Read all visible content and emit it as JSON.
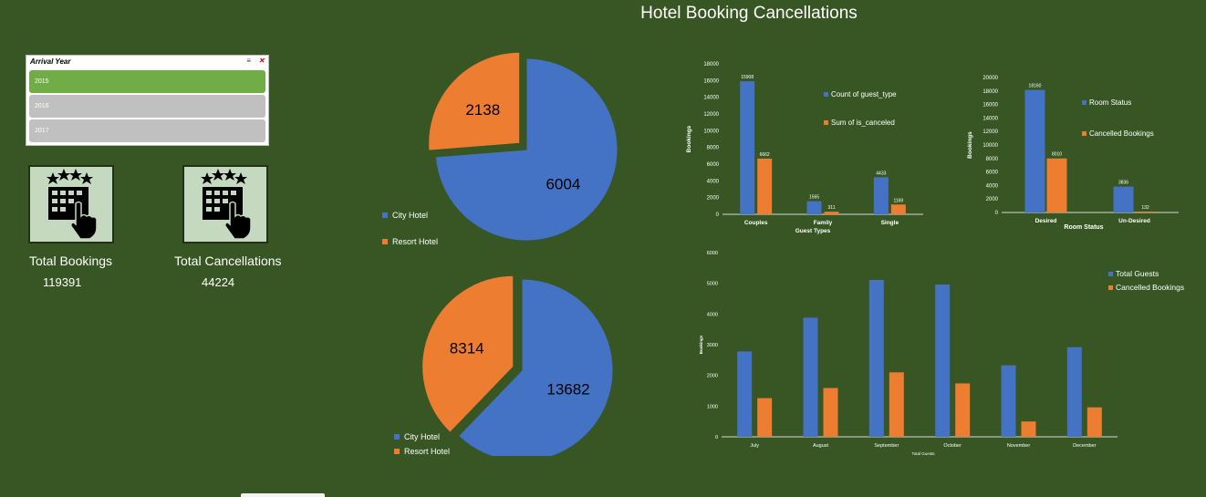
{
  "page": {
    "title": "Hotel Booking Cancellations"
  },
  "slicer": {
    "title": "Arrival Year",
    "items": [
      {
        "label": "2015",
        "selected": true
      },
      {
        "label": "2016",
        "selected": false
      },
      {
        "label": "2017",
        "selected": false
      }
    ]
  },
  "kpis": [
    {
      "label": "Total Bookings",
      "value": "119391",
      "icon": "hotel-tap-icon"
    },
    {
      "label": "Total Cancellations",
      "value": "44224",
      "icon": "hotel-tap-icon"
    }
  ],
  "colors": {
    "background": "#375623",
    "blue": "#4472c4",
    "orange": "#ed7d31",
    "slicer_selected": "#70ad47",
    "slicer_item": "#c0c0c0"
  },
  "chart_data": [
    {
      "type": "pie",
      "labels": [
        "City Hotel",
        "Resort Hotel"
      ],
      "values": [
        6004,
        2138
      ],
      "legend_position": "bottom-left",
      "exploded": "Resort Hotel"
    },
    {
      "type": "pie",
      "labels": [
        "City Hotel",
        "Resort Hotel"
      ],
      "values": [
        13682,
        8314
      ],
      "legend_position": "bottom-left",
      "exploded": "Resort Hotel"
    },
    {
      "type": "bar",
      "categories": [
        "Couples",
        "Family",
        "Single"
      ],
      "series": [
        {
          "name": "Count of guest_type",
          "values": [
            15908,
            1565,
            4433
          ]
        },
        {
          "name": "Sum of is_canceled",
          "values": [
            6662,
            311,
            1169
          ]
        }
      ],
      "data_labels": [
        [
          "15908",
          "1565",
          "4433"
        ],
        [
          "6662",
          "311",
          "1169"
        ]
      ],
      "xlabel": "Guest Types",
      "ylabel": "Bookings",
      "ylim": [
        0,
        18000
      ],
      "yticks": [
        "0",
        "2000",
        "4000",
        "6000",
        "8000",
        "10000",
        "12000",
        "14000",
        "16000",
        "18000"
      ],
      "legend_position": "right",
      "grid": false
    },
    {
      "type": "bar",
      "categories": [
        "Desired",
        "Un-Desired"
      ],
      "series": [
        {
          "name": "Room Status",
          "values": [
            18160,
            3836
          ]
        },
        {
          "name": "Cancelled Bookings",
          "values": [
            8010,
            132
          ]
        }
      ],
      "data_labels": [
        [
          "18160",
          "3836"
        ],
        [
          "8010",
          "132"
        ]
      ],
      "xlabel": "Room Status",
      "ylabel": "Bookings",
      "ylim": [
        0,
        20000
      ],
      "yticks": [
        "0",
        "2000",
        "4000",
        "6000",
        "8000",
        "10000",
        "12000",
        "14000",
        "16000",
        "18000",
        "20000"
      ],
      "legend_position": "right",
      "grid": false
    },
    {
      "type": "bar",
      "categories": [
        "July",
        "August",
        "September",
        "October",
        "November",
        "December"
      ],
      "series": [
        {
          "name": "Total Guests",
          "values": [
            2780,
            3880,
            5110,
            4960,
            2330,
            2920
          ]
        },
        {
          "name": "Cancelled Bookings",
          "values": [
            1260,
            1590,
            2100,
            1740,
            500,
            960
          ]
        }
      ],
      "xlabel": "Total Guests",
      "ylabel": "Bookings",
      "ylim": [
        0,
        6000
      ],
      "yticks": [
        "0",
        "1000",
        "2000",
        "3000",
        "4000",
        "5000",
        "6000"
      ],
      "legend_position": "top-right",
      "grid": false
    }
  ]
}
